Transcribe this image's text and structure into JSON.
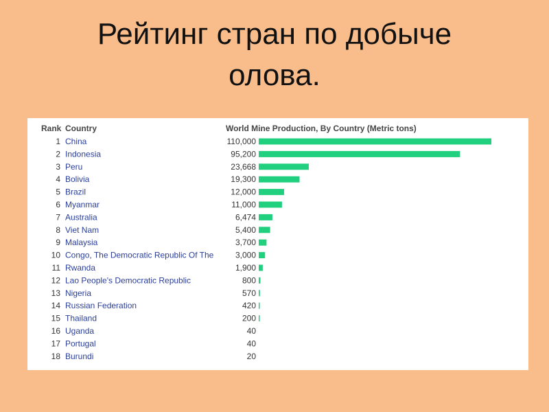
{
  "slide": {
    "title_line1": "Рейтинг стран по добыче",
    "title_line2": "олова."
  },
  "table": {
    "rank_header": "Rank",
    "country_header": "Country",
    "value_header": "World Mine Production, By Country (Metric tons)"
  },
  "colors": {
    "background": "#f9bd8c",
    "panel": "#ffffff",
    "bar": "#21d07e",
    "country_text": "#2a3e9a"
  },
  "chart_data": {
    "type": "bar",
    "orientation": "horizontal",
    "title": "World Mine Production, By Country (Metric tons)",
    "ranks": [
      1,
      2,
      3,
      4,
      5,
      6,
      7,
      8,
      9,
      10,
      11,
      12,
      13,
      14,
      15,
      16,
      17,
      18
    ],
    "categories": [
      "China",
      "Indonesia",
      "Peru",
      "Bolivia",
      "Brazil",
      "Myanmar",
      "Australia",
      "Viet Nam",
      "Malaysia",
      "Congo, The Democratic Republic Of The",
      "Rwanda",
      "Lao People's Democratic Republic",
      "Nigeria",
      "Russian Federation",
      "Thailand",
      "Uganda",
      "Portugal",
      "Burundi"
    ],
    "value_labels": [
      "110,000",
      "95,200",
      "23,668",
      "19,300",
      "12,000",
      "11,000",
      "6,474",
      "5,400",
      "3,700",
      "3,000",
      "1,900",
      "800",
      "570",
      "420",
      "200",
      "40",
      "40",
      "20"
    ],
    "values": [
      110000,
      95200,
      23668,
      19300,
      12000,
      11000,
      6474,
      5400,
      3700,
      3000,
      1900,
      800,
      570,
      420,
      200,
      40,
      40,
      20
    ],
    "xlim": [
      0,
      110000
    ],
    "grid": false,
    "legend": "none"
  }
}
